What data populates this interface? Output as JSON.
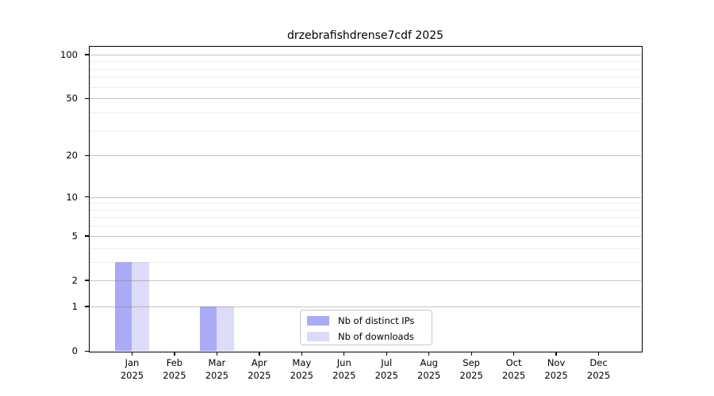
{
  "chart_data": {
    "type": "bar",
    "title": "drzebrafishdrense7cdf 2025",
    "categories": [
      "Jan",
      "Feb",
      "Mar",
      "Apr",
      "May",
      "Jun",
      "Jul",
      "Aug",
      "Sep",
      "Oct",
      "Nov",
      "Dec"
    ],
    "year": "2025",
    "series": [
      {
        "name": "Nb of distinct IPs",
        "color": "#aaaaf7",
        "values": [
          3,
          0,
          1,
          0,
          0,
          0,
          0,
          0,
          0,
          0,
          0,
          0
        ]
      },
      {
        "name": "Nb of downloads",
        "color": "#dcdcf8",
        "values": [
          3,
          0,
          1,
          0,
          0,
          0,
          0,
          0,
          0,
          0,
          0,
          0
        ]
      }
    ],
    "yscale": "log1p",
    "yaxis": {
      "ticks": [
        0,
        1,
        2,
        5,
        10,
        20,
        50,
        100
      ],
      "minor": [
        3,
        4,
        6,
        7,
        8,
        9,
        30,
        40,
        60,
        70,
        80,
        90
      ],
      "max": 113
    },
    "xlabel": "",
    "ylabel": "",
    "grid": "horizontal",
    "legend_position": "lower-center"
  },
  "colors": {
    "axis": "#000000",
    "grid_major": "#c6c6c6",
    "grid_minor": "#ededed",
    "background": "#ffffff"
  }
}
